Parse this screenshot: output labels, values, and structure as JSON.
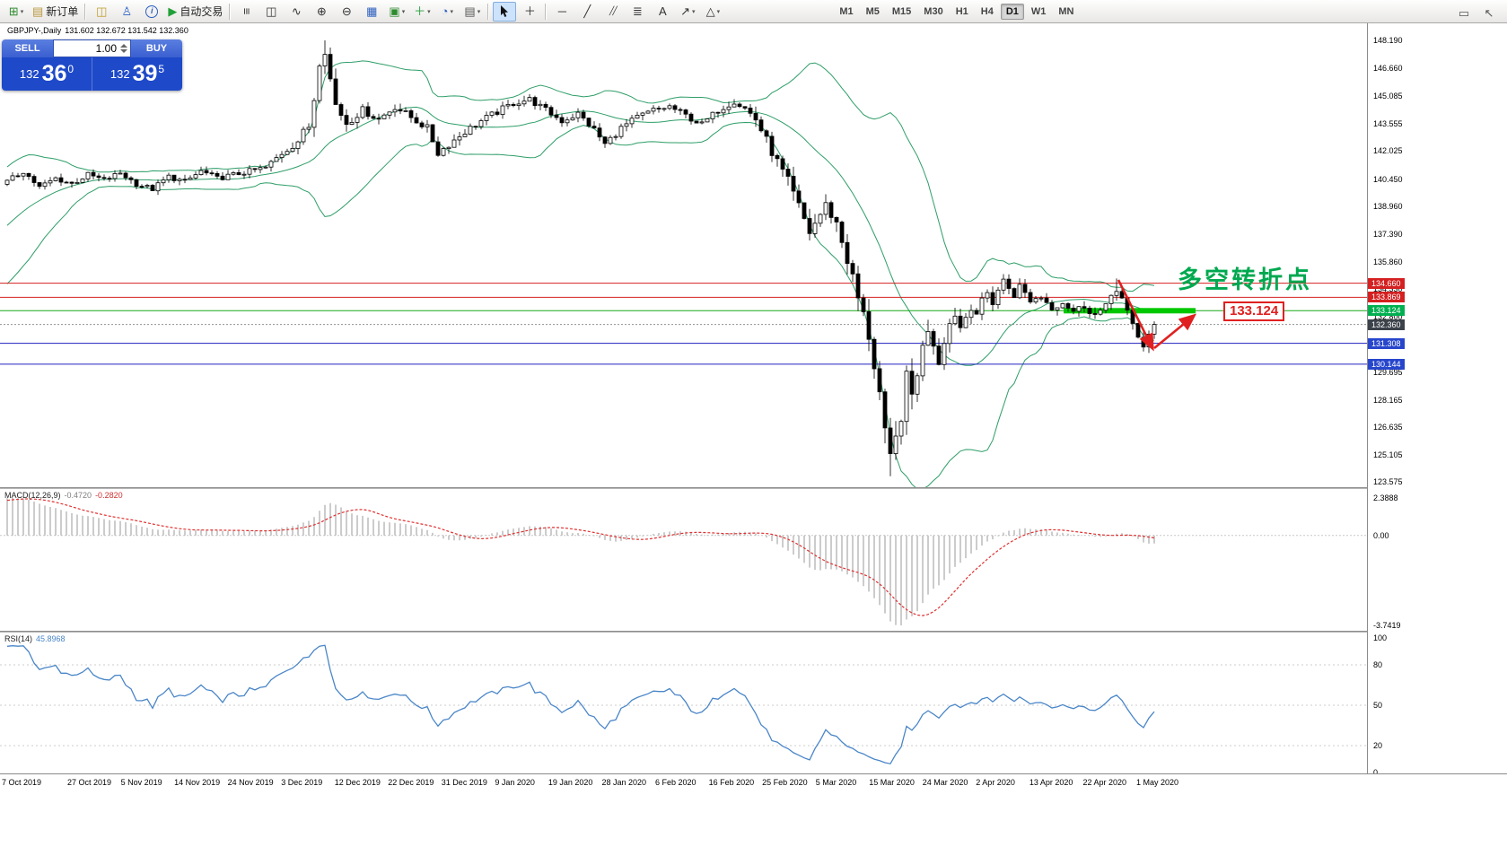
{
  "toolbar": {
    "caret_glyph": "▾",
    "groups": [
      {
        "items": [
          {
            "name": "new-chart",
            "glyph": "⊞",
            "color": "#2e8b2e",
            "caret": true
          },
          {
            "name": "new-order",
            "glyph": "▤",
            "color": "#b8973a",
            "label": "新订单"
          }
        ]
      },
      {
        "items": [
          {
            "name": "market-watch",
            "glyph": "◫",
            "color": "#c09a28"
          },
          {
            "name": "navigator",
            "glyph": "♙",
            "color": "#2b5fc0"
          },
          {
            "name": "data-window",
            "glyph": "i",
            "circle": true,
            "color": "#2b5fc0"
          },
          {
            "name": "autotrade",
            "glyph": "▶",
            "color": "#21a038",
            "label": "自动交易"
          }
        ]
      },
      {
        "items": [
          {
            "name": "bar-chart",
            "glyph": "≡",
            "rot": 90
          },
          {
            "name": "candlestick-chart",
            "glyph": "◫",
            "color": "#333333"
          },
          {
            "name": "line-chart",
            "glyph": "∿"
          },
          {
            "name": "zoom-in",
            "glyph": "⊕"
          },
          {
            "name": "zoom-out",
            "glyph": "⊖"
          },
          {
            "name": "tile-windows",
            "glyph": "▦",
            "color": "#2b5fc0"
          },
          {
            "name": "new-window",
            "glyph": "▣",
            "color": "#2e8b2e",
            "caret": true
          },
          {
            "name": "indicators",
            "glyph": "＋",
            "color": "#21a038",
            "caret": true
          },
          {
            "name": "periods",
            "glyph": "◔",
            "color": "#2b5fc0",
            "caret": true
          },
          {
            "name": "templates",
            "glyph": "▤",
            "color": "#555555",
            "caret": true
          }
        ]
      },
      {
        "items": [
          {
            "name": "cursor",
            "glyph": "cursor-svg",
            "active": true
          },
          {
            "name": "crosshair",
            "glyph": "＋"
          }
        ]
      },
      {
        "items": [
          {
            "name": "horizontal-line",
            "glyph": "─"
          },
          {
            "name": "trendline",
            "glyph": "╱"
          },
          {
            "name": "equidistant-channel",
            "glyph": "╱╱",
            "small": true
          },
          {
            "name": "fibonacci-retracement",
            "glyph": "≣"
          },
          {
            "name": "text-label",
            "glyph": "A"
          },
          {
            "name": "arrows-tool",
            "glyph": "↗",
            "caret": true
          },
          {
            "name": "shapes-tool",
            "glyph": "△",
            "caret": true
          }
        ]
      }
    ],
    "timeframes": [
      {
        "label": "M1"
      },
      {
        "label": "M5"
      },
      {
        "label": "M15"
      },
      {
        "label": "M30"
      },
      {
        "label": "H1"
      },
      {
        "label": "H4"
      },
      {
        "label": "D1",
        "active": true
      },
      {
        "label": "W1"
      },
      {
        "label": "MN"
      }
    ],
    "right_items": [
      {
        "name": "mini-window",
        "glyph": "▭"
      },
      {
        "name": "mini-pointer",
        "glyph": "↖"
      }
    ]
  },
  "symbol_bar": {
    "symbol": "GBPJPY-,Daily",
    "ohlc": "131.602 132.672 131.542 132.360"
  },
  "trade_panel": {
    "sell_label": "SELL",
    "buy_label": "BUY",
    "volume": "1.00",
    "sell_price": {
      "prefix": "132",
      "big": "36",
      "sup": "0"
    },
    "buy_price": {
      "prefix": "132",
      "big": "39",
      "sup": "5"
    }
  },
  "chart_data": {
    "type": "candlestick",
    "symbol": "GBPJPY-",
    "timeframe": "Daily",
    "ohlc_display": "131.602 132.672 131.542 132.360",
    "y_range": [
      123.29,
      149.14
    ],
    "y_ticks": [
      "148.190",
      "146.660",
      "145.085",
      "143.555",
      "142.025",
      "140.450",
      "138.960",
      "137.390",
      "135.860",
      "134.330",
      "132.800",
      "131.270",
      "129.695",
      "128.165",
      "126.635",
      "125.105",
      "123.575"
    ],
    "x_labels": [
      "7 Oct 2019",
      "27 Oct 2019",
      "5 Nov 2019",
      "14 Nov 2019",
      "24 Nov 2019",
      "3 Dec 2019",
      "12 Dec 2019",
      "22 Dec 2019",
      "31 Dec 2019",
      "9 Jan 2020",
      "19 Jan 2020",
      "28 Jan 2020",
      "6 Feb 2020",
      "16 Feb 2020",
      "25 Feb 2020",
      "5 Mar 2020",
      "15 Mar 2020",
      "24 Mar 2020",
      "2 Apr 2020",
      "13 Apr 2020",
      "22 Apr 2020",
      "1 May 2020"
    ],
    "bars": 214,
    "price_anchors": [
      [
        0,
        140.3
      ],
      [
        3,
        140.9
      ],
      [
        6,
        140.0
      ],
      [
        9,
        140.5
      ],
      [
        12,
        140.2
      ],
      [
        15,
        140.7
      ],
      [
        18,
        140.4
      ],
      [
        21,
        140.8
      ],
      [
        24,
        140.2
      ],
      [
        27,
        139.9
      ],
      [
        30,
        140.6
      ],
      [
        33,
        140.3
      ],
      [
        36,
        140.9
      ],
      [
        39,
        140.5
      ],
      [
        42,
        140.7
      ],
      [
        45,
        140.9
      ],
      [
        48,
        141.1
      ],
      [
        51,
        141.9
      ],
      [
        54,
        142.6
      ],
      [
        56,
        143.4
      ],
      [
        57,
        145.0
      ],
      [
        58,
        147.2
      ],
      [
        59,
        147.9
      ],
      [
        60,
        146.0
      ],
      [
        61,
        144.6
      ],
      [
        63,
        143.6
      ],
      [
        66,
        144.3
      ],
      [
        69,
        143.8
      ],
      [
        72,
        144.5
      ],
      [
        75,
        143.9
      ],
      [
        78,
        143.3
      ],
      [
        80,
        141.9
      ],
      [
        82,
        142.4
      ],
      [
        85,
        143.1
      ],
      [
        88,
        143.7
      ],
      [
        91,
        144.2
      ],
      [
        94,
        144.7
      ],
      [
        97,
        144.9
      ],
      [
        100,
        144.3
      ],
      [
        103,
        143.7
      ],
      [
        106,
        144.1
      ],
      [
        109,
        143.2
      ],
      [
        111,
        142.4
      ],
      [
        114,
        143.3
      ],
      [
        117,
        143.9
      ],
      [
        120,
        144.3
      ],
      [
        123,
        144.5
      ],
      [
        126,
        144.0
      ],
      [
        129,
        143.5
      ],
      [
        132,
        144.3
      ],
      [
        135,
        144.8
      ],
      [
        137,
        144.4
      ],
      [
        139,
        143.8
      ],
      [
        141,
        142.6
      ],
      [
        143,
        141.4
      ],
      [
        145,
        140.3
      ],
      [
        147,
        138.9
      ],
      [
        149,
        137.5
      ],
      [
        152,
        139.0
      ],
      [
        154,
        138.0
      ],
      [
        156,
        136.0
      ],
      [
        158,
        133.8
      ],
      [
        160,
        131.8
      ],
      [
        162,
        128.5
      ],
      [
        163,
        126.0
      ],
      [
        164,
        124.6
      ],
      [
        165,
        125.8
      ],
      [
        166,
        127.5
      ],
      [
        167,
        129.2
      ],
      [
        168,
        128.4
      ],
      [
        169,
        129.8
      ],
      [
        170,
        131.0
      ],
      [
        171,
        132.2
      ],
      [
        172,
        131.4
      ],
      [
        173,
        130.3
      ],
      [
        174,
        131.6
      ],
      [
        175,
        132.4
      ],
      [
        176,
        133.0
      ],
      [
        177,
        132.2
      ],
      [
        178,
        132.8
      ],
      [
        179,
        133.4
      ],
      [
        180,
        133.0
      ],
      [
        181,
        133.6
      ],
      [
        182,
        134.1
      ],
      [
        183,
        133.6
      ],
      [
        184,
        134.3
      ],
      [
        185,
        134.8
      ],
      [
        186,
        134.4
      ],
      [
        187,
        134.0
      ],
      [
        188,
        134.5
      ],
      [
        189,
        134.1
      ],
      [
        190,
        133.7
      ],
      [
        192,
        133.9
      ],
      [
        194,
        133.3
      ],
      [
        196,
        133.6
      ],
      [
        198,
        133.1
      ],
      [
        200,
        133.4
      ],
      [
        202,
        132.9
      ],
      [
        204,
        133.3
      ],
      [
        205,
        134.0
      ],
      [
        206,
        134.4
      ],
      [
        207,
        133.8
      ],
      [
        208,
        133.0
      ],
      [
        209,
        132.2
      ],
      [
        210,
        131.6
      ],
      [
        211,
        131.2
      ],
      [
        212,
        131.9
      ],
      [
        213,
        132.36
      ]
    ],
    "volatility_anchors": [
      [
        0,
        0.5
      ],
      [
        50,
        0.5
      ],
      [
        56,
        1.1
      ],
      [
        59,
        1.7
      ],
      [
        61,
        1.2
      ],
      [
        65,
        0.7
      ],
      [
        100,
        0.6
      ],
      [
        135,
        0.6
      ],
      [
        140,
        0.9
      ],
      [
        148,
        1.2
      ],
      [
        152,
        1.0
      ],
      [
        158,
        1.6
      ],
      [
        162,
        2.0
      ],
      [
        165,
        2.4
      ],
      [
        168,
        1.7
      ],
      [
        172,
        1.3
      ],
      [
        178,
        0.9
      ],
      [
        186,
        0.7
      ],
      [
        198,
        0.6
      ],
      [
        205,
        0.75
      ],
      [
        209,
        0.9
      ],
      [
        213,
        0.7
      ]
    ],
    "extremes": {
      "59": {
        "h": 148.19
      },
      "164": {
        "l": 123.9
      },
      "206": {
        "h": 134.92
      },
      "211": {
        "l": 130.85
      }
    },
    "hlines": [
      {
        "price": 134.66,
        "color": "#d42020",
        "style": "solid",
        "label": "134.660",
        "badge": "#d42020"
      },
      {
        "price": 133.869,
        "color": "#d42020",
        "style": "solid",
        "label": "133.869",
        "badge": "#d42020"
      },
      {
        "price": 133.124,
        "color": "#18a818",
        "style": "solid",
        "label": "133.124",
        "badge": "#00b050",
        "thick_segment": [
          1185,
          1332
        ]
      },
      {
        "price": 132.36,
        "color": "#909090",
        "style": "dotted",
        "label": "132.360",
        "badge": "#3c424a",
        "current": true
      },
      {
        "price": 131.308,
        "color": "#2020c0",
        "style": "solid",
        "label": "131.308",
        "badge": "#2746cc"
      },
      {
        "price": 130.144,
        "color": "#2020c0",
        "style": "solid",
        "label": "130.144",
        "badge": "#2746cc"
      }
    ],
    "indicators": {
      "bollinger": {
        "period": 20,
        "deviation": 2,
        "color": "#2e9e68"
      },
      "macd": {
        "label": "MACD(12,26,9)",
        "value_main": "-0.4720",
        "value_signal": "-0.2820",
        "axis": [
          "2.3888",
          "0.00",
          "-3.7419"
        ],
        "histogram_color": "#9a9a9a",
        "signal_color": "#e03030"
      },
      "rsi": {
        "label": "RSI(14)",
        "value": "45.8968",
        "axis": [
          100,
          80,
          50,
          20,
          0
        ],
        "levels": [
          80,
          50,
          20
        ],
        "color": "#4a86c8"
      }
    },
    "annotations": {
      "turning_point": {
        "text": "多空转折点",
        "color": "#00a84f",
        "x": 1312,
        "y": 264
      },
      "price_box": {
        "text": "133.124",
        "color": "#e02020",
        "x": 1363,
        "y": 310
      },
      "arrows": [
        {
          "from": [
            1246,
            286
          ],
          "to": [
            1284,
            362
          ],
          "color": "#e02020"
        },
        {
          "from": [
            1286,
            362
          ],
          "to": [
            1330,
            326
          ],
          "color": "#e02020"
        }
      ]
    }
  }
}
